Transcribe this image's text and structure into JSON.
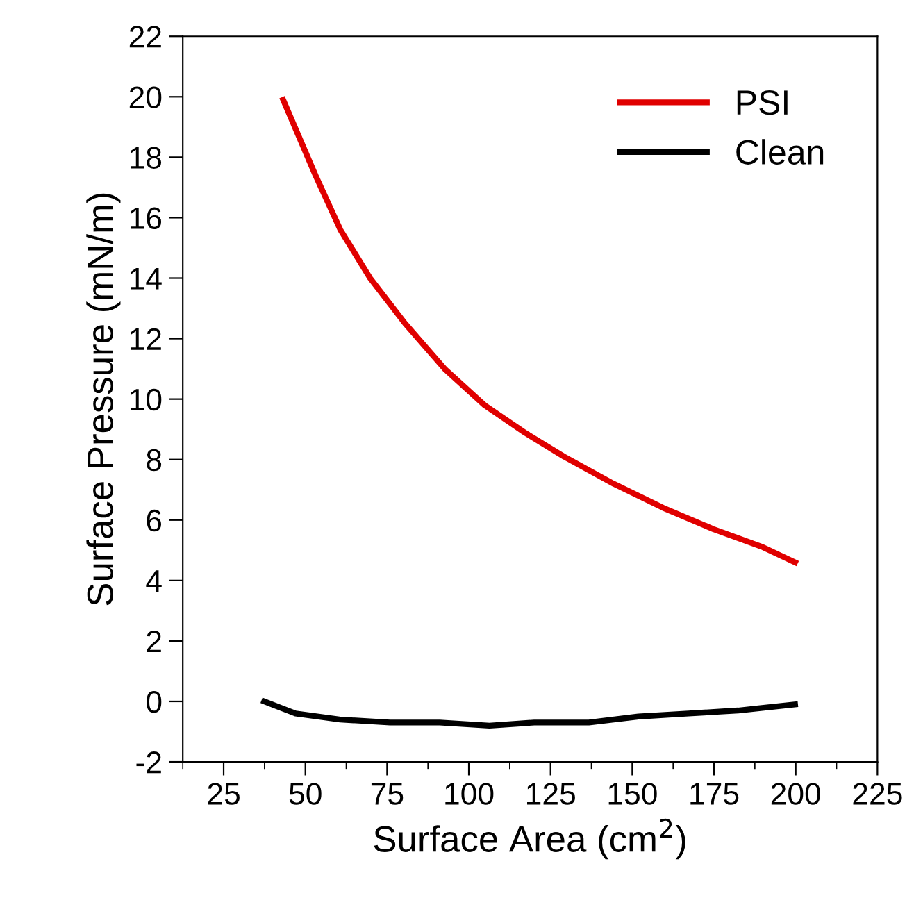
{
  "chart_data": {
    "type": "line",
    "xlabel": "Surface Area (cm$^{2}$)",
    "ylabel": "Surface Pressure (mN/m)",
    "xlim": [
      12.5,
      225
    ],
    "xticks": [
      25,
      50,
      75,
      100,
      125,
      150,
      175,
      200,
      225
    ],
    "ylim": [
      -2,
      22
    ],
    "yticks": [
      -2,
      0,
      2,
      4,
      6,
      8,
      10,
      12,
      14,
      16,
      18,
      20,
      22
    ],
    "legend": "top right",
    "grid": false,
    "series": [
      {
        "name": "PSI",
        "color": "#e00000",
        "x": [
          43.2,
          53.1,
          60.7,
          69.8,
          80.5,
          92.6,
          104.8,
          117.0,
          129.1,
          144.3,
          159.5,
          174.8,
          190.0,
          199.8
        ],
        "values": [
          19.9,
          17.4,
          15.6,
          14.0,
          12.5,
          11.0,
          9.8,
          8.9,
          8.1,
          7.2,
          6.4,
          5.7,
          5.1,
          4.6
        ]
      },
      {
        "name": "Clean",
        "color": "#000000",
        "x": [
          37.4,
          47.0,
          60.7,
          75.9,
          91.1,
          106.3,
          120.0,
          136.7,
          151.9,
          167.2,
          182.4,
          199.8
        ],
        "values": [
          0.0,
          -0.4,
          -0.6,
          -0.7,
          -0.7,
          -0.8,
          -0.7,
          -0.7,
          -0.5,
          -0.4,
          -0.3,
          -0.1
        ]
      }
    ]
  }
}
